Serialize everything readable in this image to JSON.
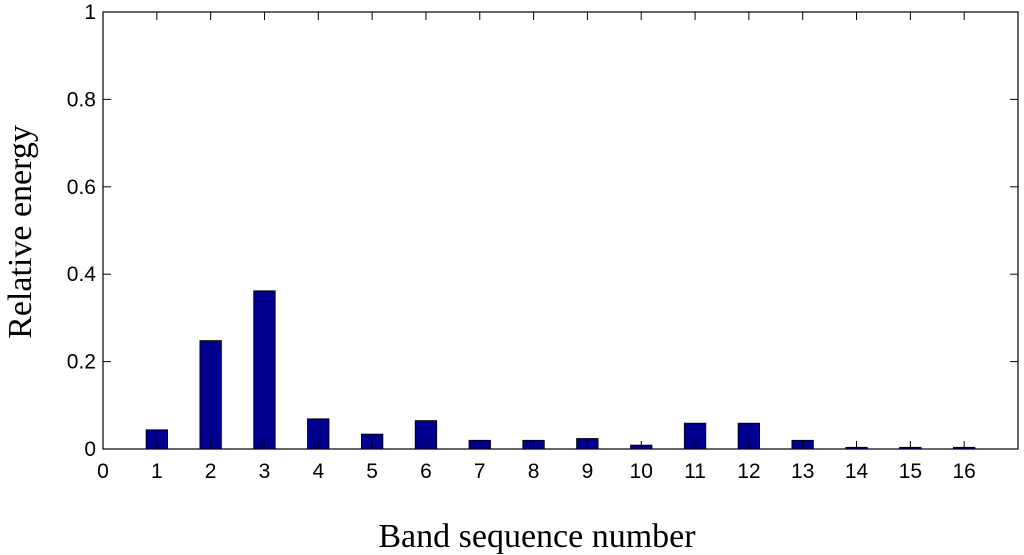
{
  "chart_data": {
    "type": "bar",
    "title": "",
    "xlabel": "Band sequence number",
    "ylabel": "Relative energy",
    "categories": [
      "1",
      "2",
      "3",
      "4",
      "5",
      "6",
      "7",
      "8",
      "9",
      "10",
      "11",
      "12",
      "13",
      "14",
      "15",
      "16"
    ],
    "values": [
      0.044,
      0.248,
      0.362,
      0.069,
      0.034,
      0.065,
      0.02,
      0.02,
      0.024,
      0.009,
      0.059,
      0.059,
      0.02,
      0.004,
      0.004,
      0.004
    ],
    "xlim": [
      0,
      17
    ],
    "ylim": [
      0,
      1
    ],
    "xticks": [
      "0",
      "1",
      "2",
      "3",
      "4",
      "5",
      "6",
      "7",
      "8",
      "9",
      "10",
      "11",
      "12",
      "13",
      "14",
      "15",
      "16"
    ],
    "yticks": [
      "0",
      "0.2",
      "0.4",
      "0.6",
      "0.8",
      "1"
    ],
    "grid": false,
    "legend": "none",
    "bar_color": "#00008f"
  }
}
